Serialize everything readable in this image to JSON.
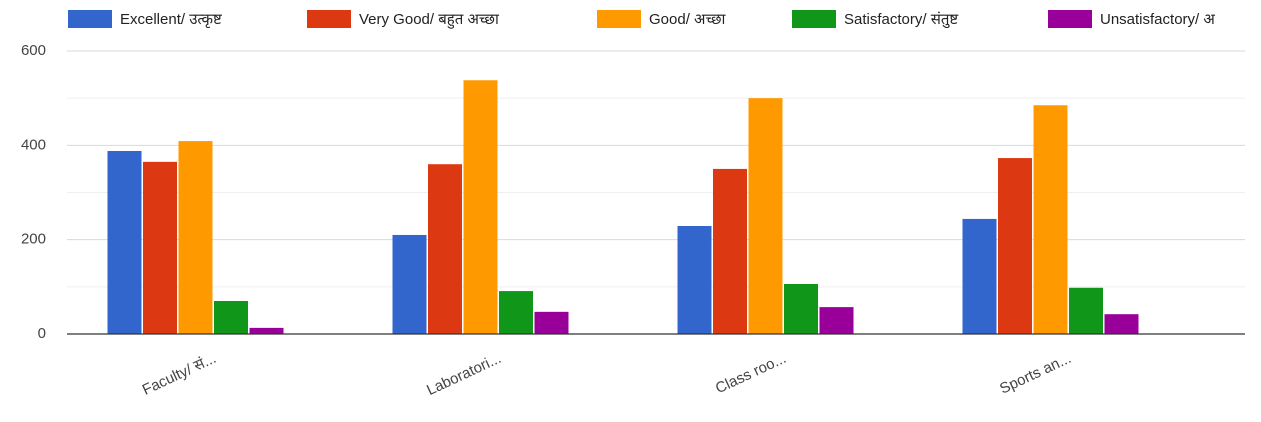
{
  "chart_data": {
    "type": "bar",
    "categories": [
      "Faculty/ सं...",
      "Laboratori...",
      "Class roo...",
      "Sports an..."
    ],
    "series": [
      {
        "name": "Excellent/ उत्कृष्ट",
        "color": "#3366cc",
        "values": [
          388,
          210,
          229,
          244
        ]
      },
      {
        "name": "Very Good/ बहुत अच्छा",
        "color": "#dc3912",
        "values": [
          365,
          360,
          350,
          373
        ]
      },
      {
        "name": "Good/ अच्छा",
        "color": "#ff9900",
        "values": [
          409,
          538,
          500,
          485
        ]
      },
      {
        "name": "Satisfactory/ संतुष्ट",
        "color": "#109618",
        "values": [
          70,
          91,
          106,
          98
        ]
      },
      {
        "name": "Unsatisfactory/ अ",
        "color": "#990099",
        "values": [
          13,
          47,
          57,
          42
        ]
      }
    ],
    "ylim": [
      0,
      600
    ],
    "yticks": [
      0,
      200,
      400,
      600
    ],
    "minor_yticks": [
      100,
      300,
      500
    ],
    "grid": true,
    "legend": "top"
  }
}
